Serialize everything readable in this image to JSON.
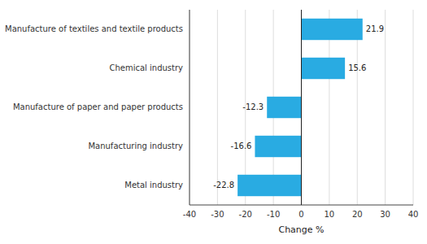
{
  "chart_data": {
    "type": "bar",
    "orientation": "horizontal",
    "categories": [
      "Metal industry",
      "Manufacturing industry",
      "Manufacture of paper and paper products",
      "Chemical industry",
      "Manufacture of textiles and textile products"
    ],
    "values": [
      -22.8,
      -16.6,
      -12.3,
      15.6,
      21.9
    ],
    "color": "#29abe2",
    "xlabel": "Change %",
    "xlim": [
      -40,
      40
    ],
    "xticks": [
      -40,
      -30,
      -20,
      -10,
      0,
      10,
      20,
      30,
      40
    ],
    "grid": true,
    "data_labels": true
  }
}
